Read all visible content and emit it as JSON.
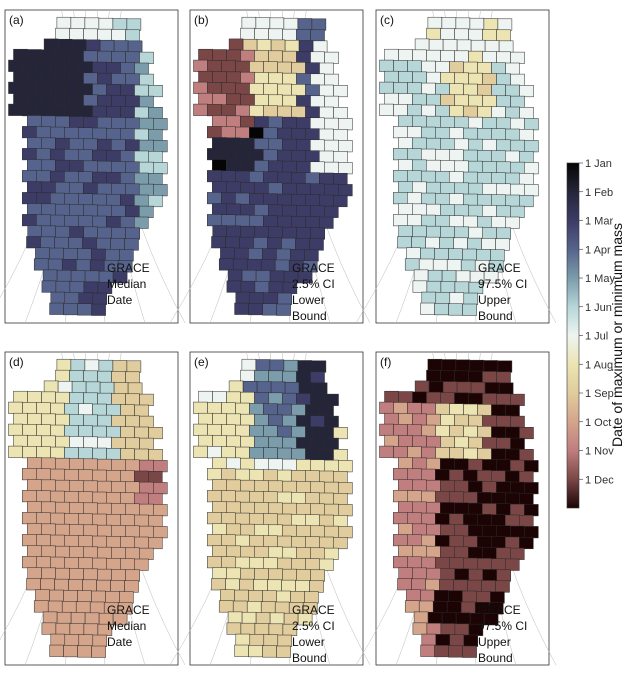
{
  "panels": [
    {
      "label": "(a)",
      "caption": [
        "GRACE",
        "Median",
        "Date"
      ]
    },
    {
      "label": "(b)",
      "caption": [
        "GRACE",
        "2.5% CI",
        "Lower",
        "Bound"
      ]
    },
    {
      "label": "(c)",
      "caption": [
        "GRACE",
        "97.5% CI",
        "Upper",
        "Bound"
      ]
    },
    {
      "label": "(d)",
      "caption": [
        "GRACE",
        "Median",
        "Date"
      ]
    },
    {
      "label": "(e)",
      "caption": [
        "GRACE",
        "2.5% CI",
        "Lower",
        "Bound"
      ]
    },
    {
      "label": "(f)",
      "caption": [
        "GRACE",
        "97.5% CI",
        "Upper",
        "Bound"
      ]
    }
  ],
  "colorbar": {
    "title": "Date of maximum or minimum mass",
    "ticks": [
      "1 Jan",
      "1 Feb",
      "1 Mar",
      "1 Apr",
      "1 May",
      "1 Jun",
      "1 Jul",
      "1 Aug",
      "1 Sep",
      "1 Oct",
      "1 Nov",
      "1 Dec"
    ]
  }
}
